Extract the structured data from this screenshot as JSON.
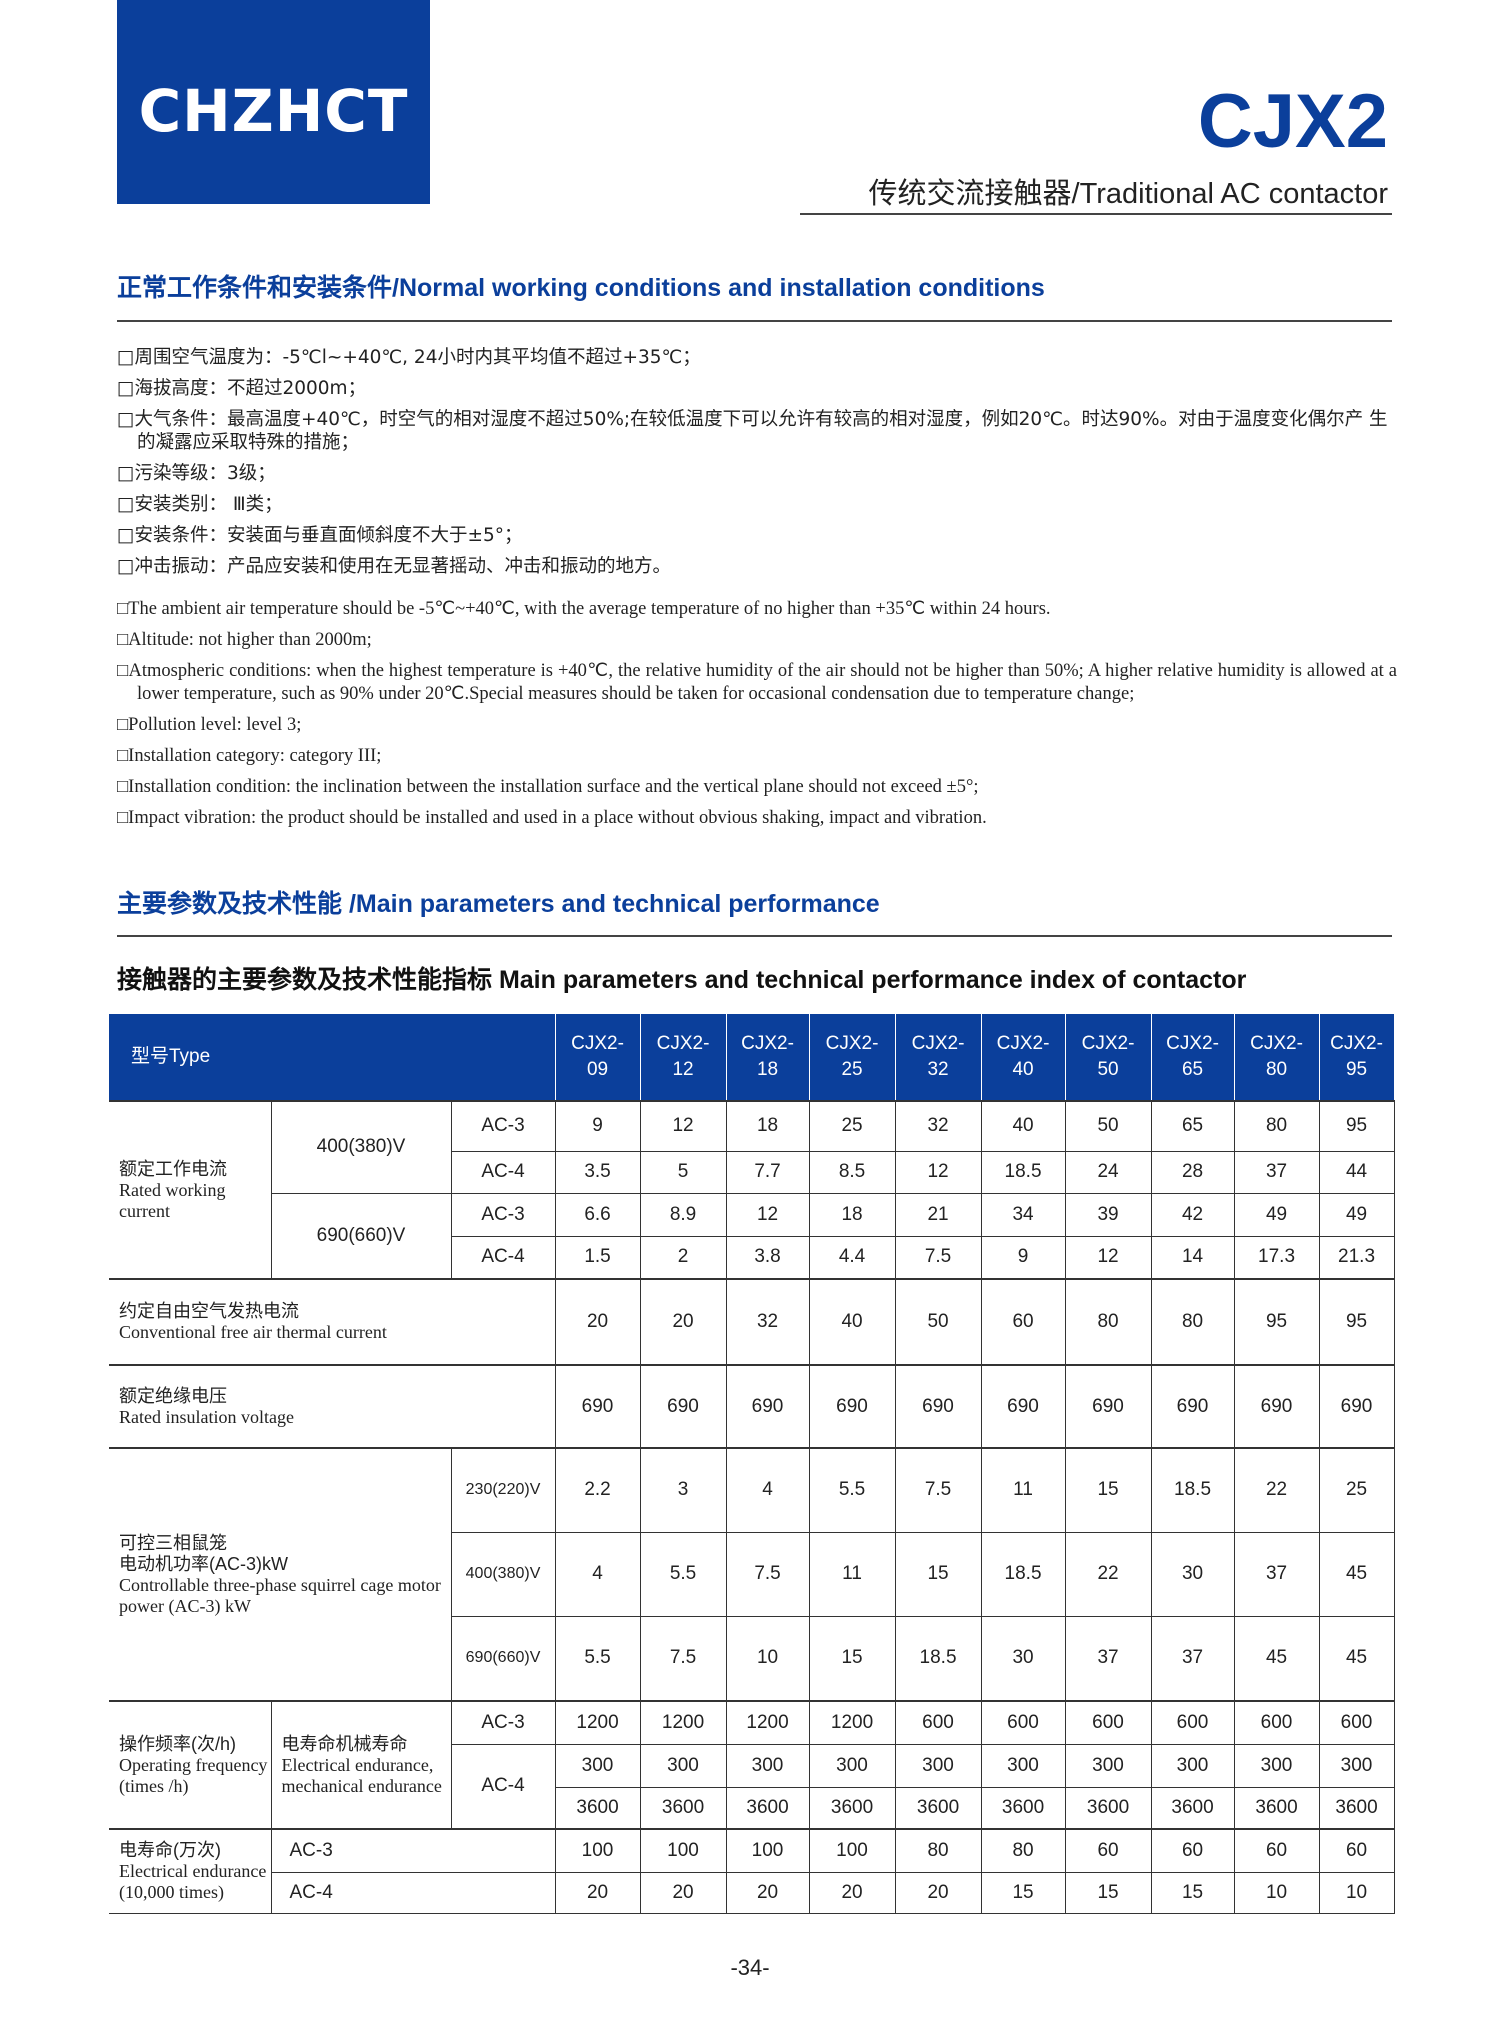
{
  "header": {
    "logo": "CHZHCT",
    "model": "CJX2",
    "subtitle": "传统交流接触器/Traditional AC contactor"
  },
  "section1": {
    "title": "正常工作条件和安装条件/Normal working conditions and installation conditions",
    "cn": [
      "□周围空气温度为：-5℃l~+40℃, 24小时内其平均值不超过+35℃；",
      "□海拔高度：不超过2000m；",
      "□大气条件：最高温度+40℃，时空气的相对湿度不超过50%;在较低温度下可以允许有较高的相对湿度，例如20℃。时达90%。对由于温度变化偶尔产 生的凝露应采取特殊的措施；",
      "□污染等级：3级；",
      "□安装类别： Ⅲ类；",
      "□安装条件：安装面与垂直面倾斜度不大于±5°；",
      "□冲击振动：产品应安装和使用在无显著摇动、冲击和振动的地方。"
    ],
    "en": [
      "□The ambient air temperature should be -5℃~+40℃, with the average temperature of no higher than +35℃ within 24 hours.",
      "□Altitude: not higher than 2000m;",
      "□Atmospheric conditions: when the highest temperature is +40℃, the relative humidity of the air should not be higher than 50%; A higher relative humidity is allowed at a lower temperature, such as 90% under 20℃.Special measures should be taken for occasional condensation due to temperature change;",
      "□Pollution level: level 3;",
      "□Installation category: category III;",
      "□Installation condition: the inclination between the installation surface and the vertical plane should not exceed ±5°;",
      "□Impact vibration: the product should be installed and used in a place without obvious shaking, impact and vibration."
    ]
  },
  "section2": {
    "title": "主要参数及技术性能 /Main parameters and technical performance"
  },
  "table": {
    "title": "接触器的主要参数及技术性能指标 Main parameters and technical performance index of contactor",
    "type_label": "型号Type",
    "models": [
      "CJX2-\n09",
      "CJX2-\n12",
      "CJX2-\n18",
      "CJX2-\n25",
      "CJX2-\n32",
      "CJX2-\n40",
      "CJX2-\n50",
      "CJX2-\n65",
      "CJX2-\n80",
      "CJX2-\n95"
    ],
    "labels": {
      "rated_current_cn": "额定工作电流",
      "rated_current_en": "Rated working current",
      "v400": "400(380)V",
      "v690": "690(660)V",
      "ac3": "AC-3",
      "ac4": "AC-4",
      "thermal_cn": "约定自由空气发热电流",
      "thermal_en": "Conventional free air thermal current",
      "insul_cn": "额定绝缘电压",
      "insul_en": "Rated insulation voltage",
      "motor_cn": "可控三相鼠笼\n电动机功率(AC-3)kW",
      "motor_en": "Controllable three-phase squirrel cage motor power (AC-3) kW",
      "v230": "230(220)V",
      "opfreq_cn": "操作频率(次/h)",
      "opfreq_en": "Operating frequency (times /h)",
      "endur_cn": "电寿命机械寿命",
      "endur_en": "Electrical endurance, mechanical endurance",
      "elec_cn": "电寿命(万次)",
      "elec_en": "Electrical endurance (10,000 times)"
    },
    "rows": {
      "i400_ac3": [
        "9",
        "12",
        "18",
        "25",
        "32",
        "40",
        "50",
        "65",
        "80",
        "95"
      ],
      "i400_ac4": [
        "3.5",
        "5",
        "7.7",
        "8.5",
        "12",
        "18.5",
        "24",
        "28",
        "37",
        "44"
      ],
      "i690_ac3": [
        "6.6",
        "8.9",
        "12",
        "18",
        "21",
        "34",
        "39",
        "42",
        "49",
        "49"
      ],
      "i690_ac4": [
        "1.5",
        "2",
        "3.8",
        "4.4",
        "7.5",
        "9",
        "12",
        "14",
        "17.3",
        "21.3"
      ],
      "thermal": [
        "20",
        "20",
        "32",
        "40",
        "50",
        "60",
        "80",
        "80",
        "95",
        "95"
      ],
      "insulation": [
        "690",
        "690",
        "690",
        "690",
        "690",
        "690",
        "690",
        "690",
        "690",
        "690"
      ],
      "p230": [
        "2.2",
        "3",
        "4",
        "5.5",
        "7.5",
        "11",
        "15",
        "18.5",
        "22",
        "25"
      ],
      "p400": [
        "4",
        "5.5",
        "7.5",
        "11",
        "15",
        "18.5",
        "22",
        "30",
        "37",
        "45"
      ],
      "p690": [
        "5.5",
        "7.5",
        "10",
        "15",
        "18.5",
        "30",
        "37",
        "37",
        "45",
        "45"
      ],
      "op_ac3": [
        "1200",
        "1200",
        "1200",
        "1200",
        "600",
        "600",
        "600",
        "600",
        "600",
        "600"
      ],
      "op_ac4_a": [
        "300",
        "300",
        "300",
        "300",
        "300",
        "300",
        "300",
        "300",
        "300",
        "300"
      ],
      "op_ac4_b": [
        "3600",
        "3600",
        "3600",
        "3600",
        "3600",
        "3600",
        "3600",
        "3600",
        "3600",
        "3600"
      ],
      "el_ac3": [
        "100",
        "100",
        "100",
        "100",
        "80",
        "80",
        "60",
        "60",
        "60",
        "60"
      ],
      "el_ac4": [
        "20",
        "20",
        "20",
        "20",
        "20",
        "15",
        "15",
        "15",
        "10",
        "10"
      ]
    }
  },
  "page_number": "-34-"
}
